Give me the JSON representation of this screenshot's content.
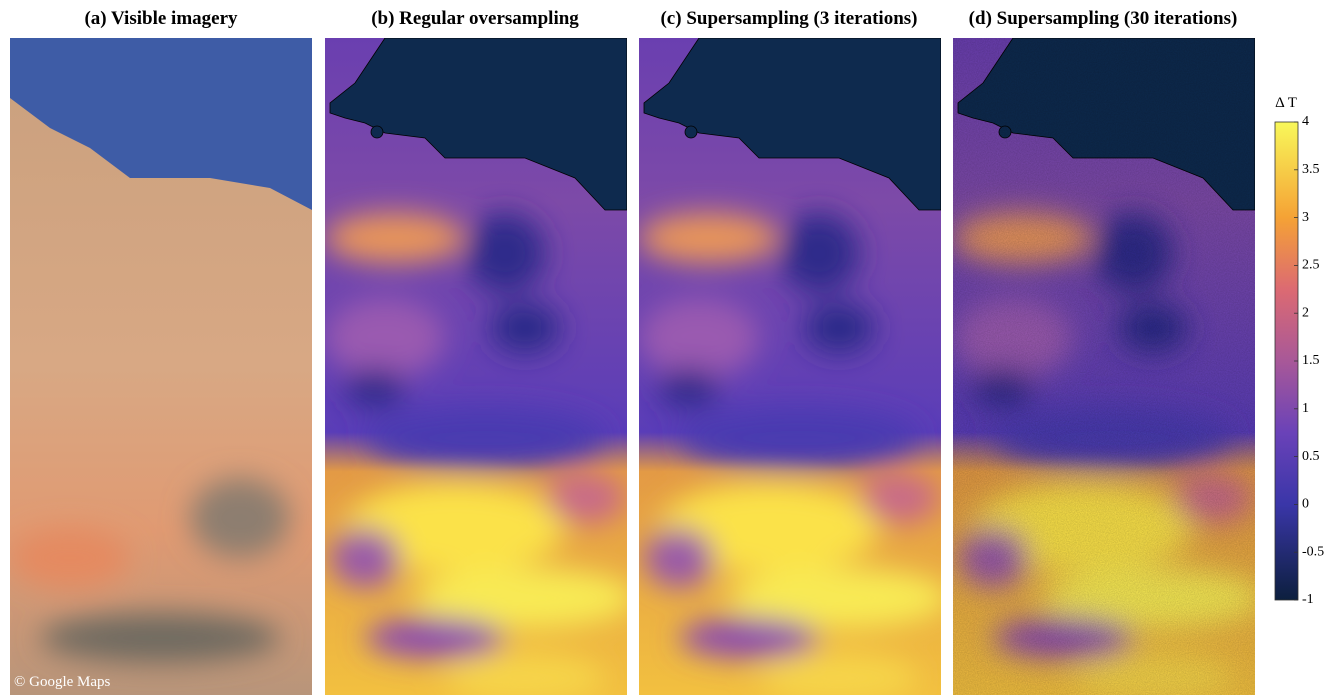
{
  "panels": [
    {
      "title": "(a) Visible imagery",
      "attribution": "© Google Maps"
    },
    {
      "title": "(b) Regular oversampling"
    },
    {
      "title": "(c) Supersampling (3 iterations)"
    },
    {
      "title": "(d) Supersampling (30 iterations)"
    }
  ],
  "colorbar": {
    "label": "Δ T",
    "clim": [
      -1,
      4
    ],
    "ticks": [
      4,
      3.5,
      3,
      2.5,
      2,
      1.5,
      1,
      0.5,
      0,
      -0.5,
      -1
    ]
  }
}
